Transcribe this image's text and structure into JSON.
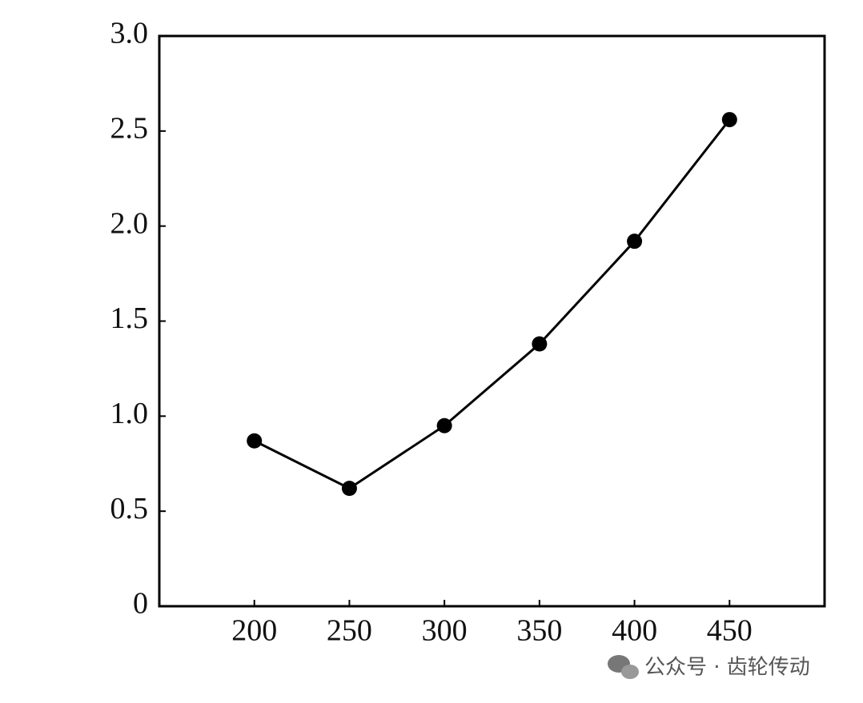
{
  "chart_data": {
    "type": "line",
    "x": [
      200,
      250,
      300,
      350,
      400,
      450
    ],
    "values": [
      0.87,
      0.62,
      0.95,
      1.38,
      1.92,
      2.56
    ],
    "color": "#000000",
    "xlim": [
      150,
      500
    ],
    "xticks": [
      200,
      250,
      300,
      350,
      400,
      450
    ],
    "ylim": [
      0,
      3
    ],
    "yticks": [
      0,
      0.5,
      {
        "value": 1,
        "label": "1.0"
      },
      1.5,
      {
        "value": 2,
        "label": "2.0"
      },
      2.5,
      {
        "value": 3,
        "label": "3.0"
      }
    ],
    "watermark": "公众号 · 齿轮传动"
  }
}
